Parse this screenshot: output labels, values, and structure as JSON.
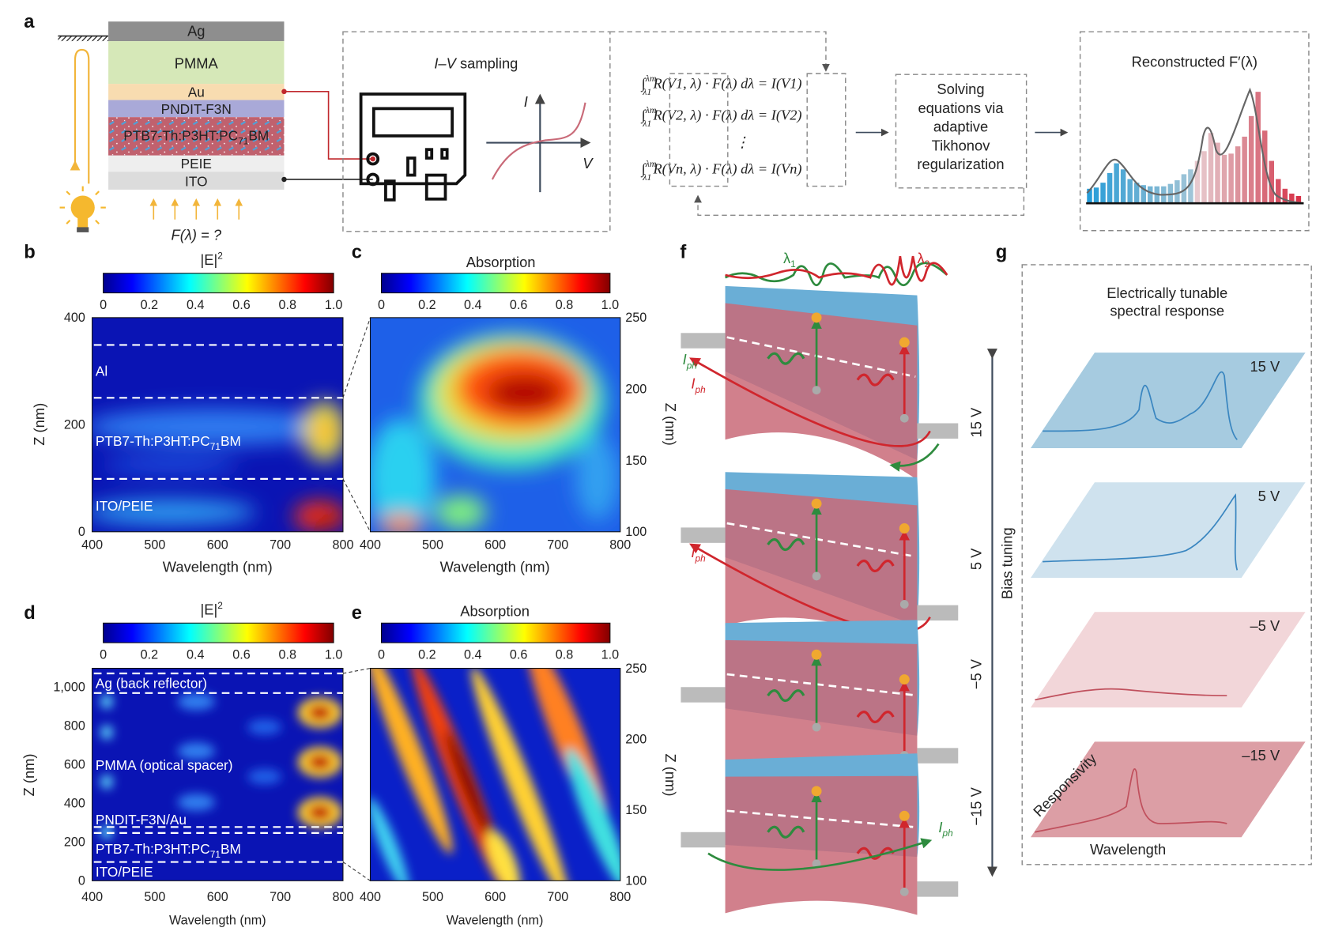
{
  "panel_a": {
    "label": "a",
    "layers": [
      "Ag",
      "PMMA",
      "Au",
      "PNDIT-F3N",
      "PTB7-Th:P3HT:PC",
      "PEIE",
      "ITO"
    ],
    "active_layer_sub": "71",
    "active_layer_suffix": "BM",
    "input_label": "F(λ) = ?",
    "iv_title_italic": "I–V",
    "iv_title_rest": " sampling",
    "iv_axis_i": "I",
    "iv_axis_v": "V",
    "equations": [
      {
        "lhs_a": "∫",
        "lim_up": "λm",
        "lim_low": "λ1",
        "r": "R(V1, λ)",
        "mid": " · F(λ) dλ = ",
        "i": "I(V1)"
      },
      {
        "lhs_a": "∫",
        "lim_up": "λm",
        "lim_low": "λ1",
        "r": "R(V2, λ)",
        "mid": " · F(λ) dλ = ",
        "i": "I(V2)"
      },
      {
        "lhs_a": "∫",
        "lim_up": "λm",
        "lim_low": "λ1",
        "r": "R(Vn, λ)",
        "mid": " · F(λ) dλ = ",
        "i": "I(Vn)"
      }
    ],
    "vdots": "⋮",
    "solver_lines": [
      "Solving",
      "equations via",
      "adaptive",
      "Tikhonov",
      "regularization"
    ],
    "reconstructed_title": "Reconstructed F′(λ)",
    "colors": {
      "blue": "#3a9fd6",
      "red": "#d0505f",
      "wire_red": "#c0282d",
      "light": "#f2b53a"
    }
  },
  "panel_b": {
    "label": "b",
    "colorbar_title": "|E|",
    "colorbar_sup": "2",
    "colorbar_ticks": [
      "0",
      "0.2",
      "0.4",
      "0.6",
      "0.8",
      "1.0"
    ],
    "y_ticks": [
      "400",
      "200",
      "0"
    ],
    "y_label": "Z (nm)",
    "x_ticks": [
      "400",
      "500",
      "600",
      "700",
      "800"
    ],
    "x_label": "Wavelength (nm)",
    "regions": [
      "Al",
      "PTB7-Th:P3HT:PC",
      "ITO/PEIE"
    ],
    "region_sub": "71",
    "region_suffix": "BM"
  },
  "panel_c": {
    "label": "c",
    "colorbar_title": "Absorption",
    "colorbar_ticks": [
      "0",
      "0.2",
      "0.4",
      "0.6",
      "0.8",
      "1.0"
    ],
    "y_ticks": [
      "250",
      "200",
      "150",
      "100"
    ],
    "y_label": "Z (nm)",
    "x_ticks": [
      "400",
      "500",
      "600",
      "700",
      "800"
    ],
    "x_label": "Wavelength (nm)"
  },
  "panel_d": {
    "label": "d",
    "colorbar_title": "|E|",
    "colorbar_sup": "2",
    "colorbar_ticks": [
      "0",
      "0.2",
      "0.4",
      "0.6",
      "0.8",
      "1.0"
    ],
    "y_ticks": [
      "1,000",
      "800",
      "600",
      "400",
      "200",
      "0"
    ],
    "y_label": "Z (nm)",
    "x_ticks": [
      "400",
      "500",
      "600",
      "700",
      "800"
    ],
    "x_label": "Wavelength (nm)",
    "regions": [
      "Ag (back reflector)",
      "PMMA (optical spacer)",
      "PNDIT-F3N/Au",
      "PTB7-Th:P3HT:PC",
      "ITO/PEIE"
    ],
    "region_sub": "71",
    "region_suffix": "BM"
  },
  "panel_e": {
    "label": "e",
    "colorbar_title": "Absorption",
    "colorbar_ticks": [
      "0",
      "0.2",
      "0.4",
      "0.6",
      "0.8",
      "1.0"
    ],
    "y_ticks": [
      "250",
      "200",
      "150",
      "100"
    ],
    "y_label": "Z (nm)",
    "x_ticks": [
      "400",
      "500",
      "600",
      "700",
      "800"
    ],
    "x_label": "Wavelength (nm)"
  },
  "panel_f": {
    "label": "f",
    "lambda1": "λ",
    "lambda1_sub": "1",
    "lambda2": "λ",
    "lambda2_sub": "2",
    "iph": "I",
    "iph_sub": "ph",
    "bias_label": "Bias tuning",
    "bias_ticks": [
      "15 V",
      "5 V",
      "−5 V",
      "−15 V"
    ],
    "colors": {
      "green": "#2e8b3e",
      "red": "#d0262d",
      "blue_layer": "#6aaed6",
      "red_layer": "#c96a78"
    }
  },
  "panel_g": {
    "label": "g",
    "title_lines": [
      "Electrically tunable",
      "spectral response"
    ],
    "planes": [
      "15 V",
      "5 V",
      "–5 V",
      "–15 V"
    ],
    "y_axis": "Responsivity",
    "x_axis": "Wavelength",
    "colors": [
      "#a6cbe0",
      "#cfe2ee",
      "#f2d6d9",
      "#dc9ea5"
    ]
  }
}
